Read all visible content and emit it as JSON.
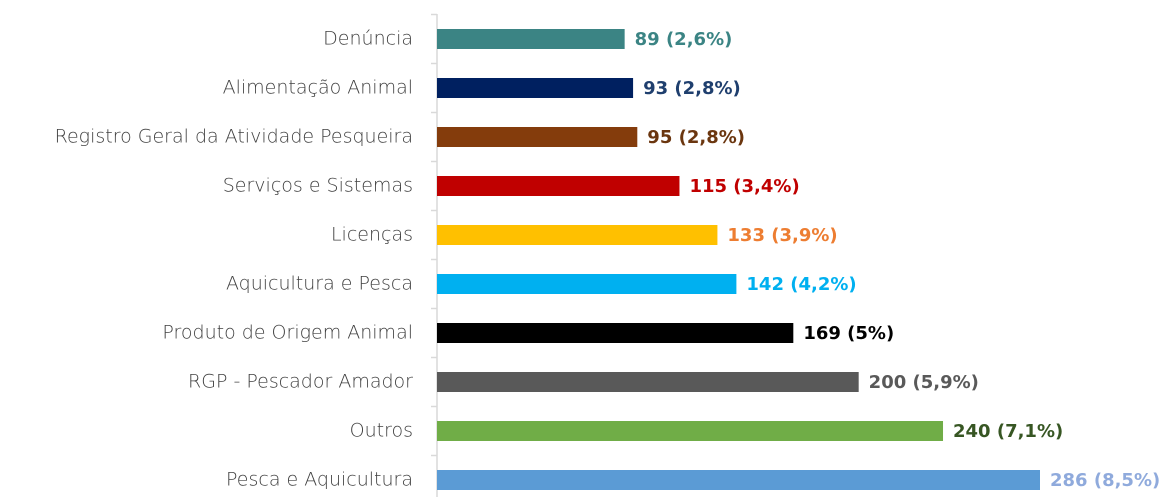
{
  "chart_data": {
    "type": "bar",
    "orientation": "horizontal",
    "categories": [
      "Denúncia",
      "Alimentação Animal",
      "Registro Geral da Atividade Pesqueira",
      "Serviços e Sistemas",
      "Licenças",
      "Aquicultura e Pesca",
      "Produto de Origem Animal",
      "RGP - Pescador Amador",
      "Outros",
      "Pesca e Aquicultura"
    ],
    "values": [
      89,
      93,
      95,
      115,
      133,
      142,
      169,
      200,
      240,
      286
    ],
    "value_labels": [
      "89 (2,6%)",
      "93 (2,8%)",
      "95 (2,8%)",
      "115 (3,4%)",
      "133 (3,9%)",
      "142 (4,2%)",
      "169 (5%)",
      "200 (5,9%)",
      "240 (7,1%)",
      "286 (8,5%)"
    ],
    "colors": [
      "#3b8484",
      "#002060",
      "#843c0c",
      "#c00000",
      "#ffc000",
      "#00b0f0",
      "#000000",
      "#595959",
      "#70ad47",
      "#5b9bd5"
    ],
    "label_colors": [
      "#3b8484",
      "#1f3f6e",
      "#6b360f",
      "#c00000",
      "#ed7d31",
      "#00b0f0",
      "#000000",
      "#595959",
      "#375623",
      "#8faadc"
    ]
  }
}
